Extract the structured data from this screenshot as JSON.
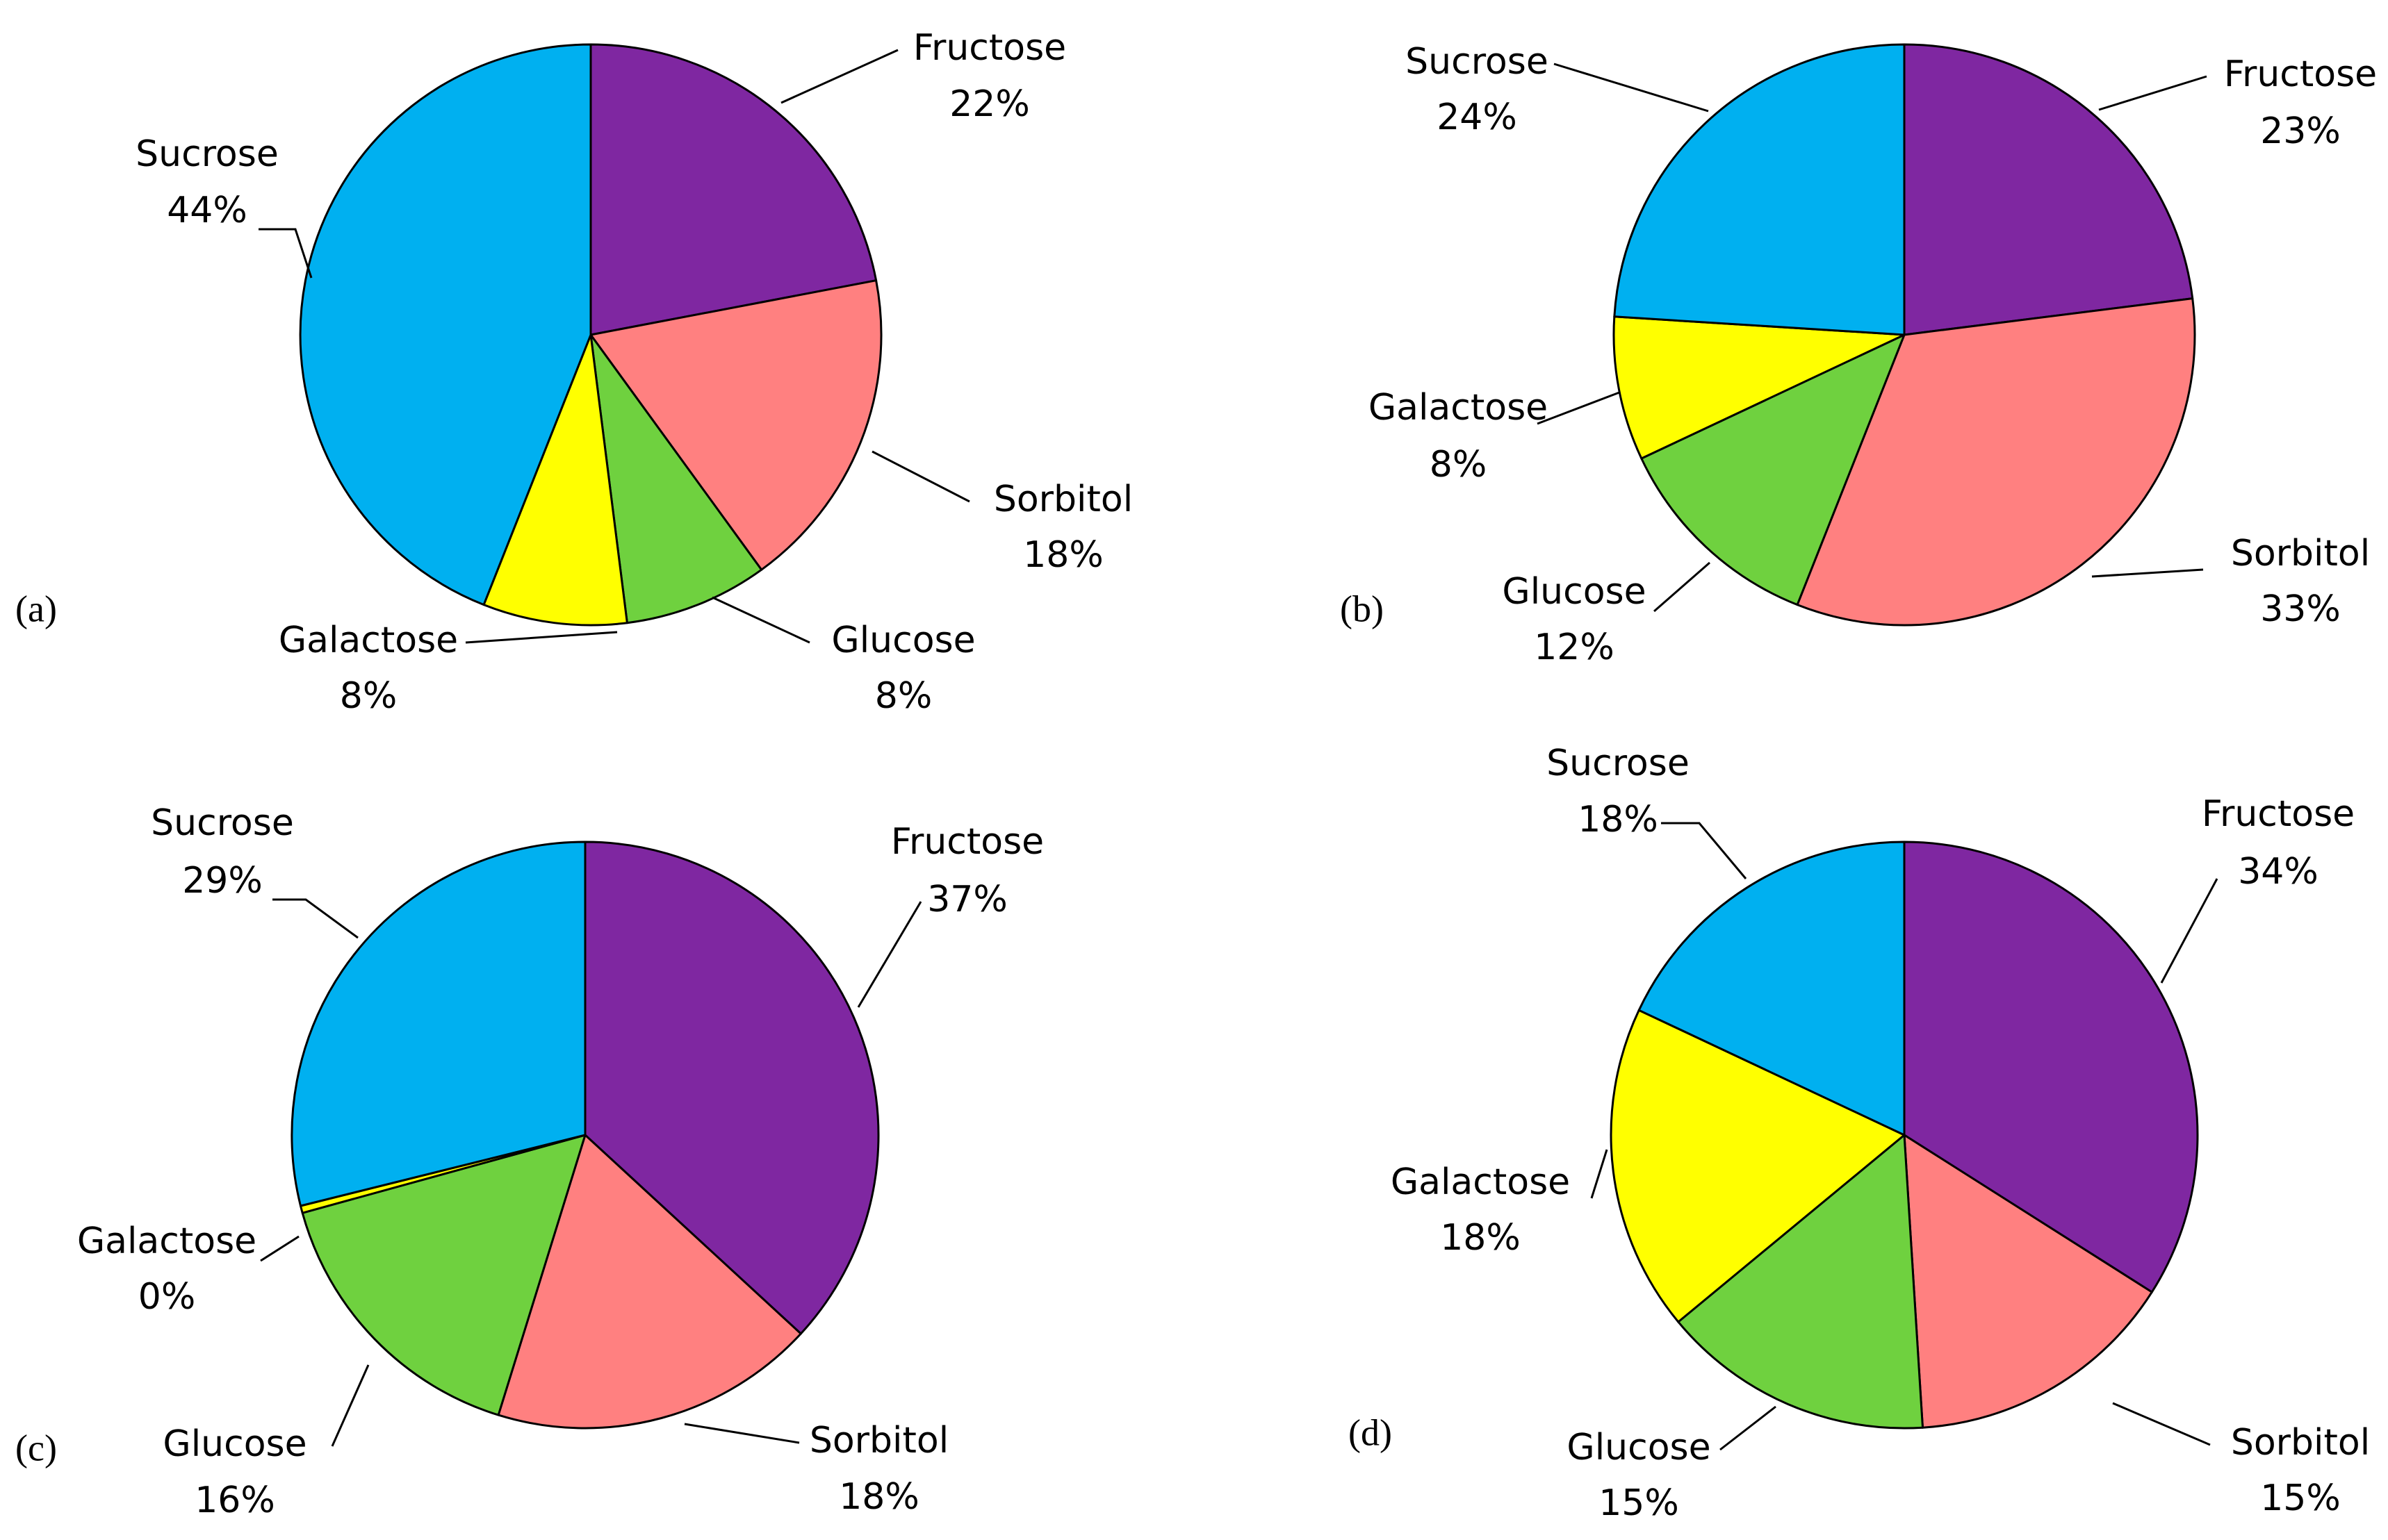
{
  "colors": {
    "Fructose": "#7F27A1",
    "Sorbitol": "#FF8080",
    "Glucose": "#6FD13F",
    "Galactose": "#FFFF00",
    "Sucrose": "#00B0F0"
  },
  "chart_data": [
    {
      "type": "pie",
      "panel_label": "(a)",
      "categories": [
        "Fructose",
        "Sorbitol",
        "Glucose",
        "Galactose",
        "Sucrose"
      ],
      "values": [
        22,
        18,
        8,
        8,
        44
      ],
      "labels": [
        "22%",
        "18%",
        "8%",
        "8%",
        "44%"
      ]
    },
    {
      "type": "pie",
      "panel_label": "(b)",
      "categories": [
        "Fructose",
        "Sorbitol",
        "Glucose",
        "Galactose",
        "Sucrose"
      ],
      "values": [
        23,
        33,
        12,
        8,
        24
      ],
      "labels": [
        "23%",
        "33%",
        "12%",
        "8%",
        "24%"
      ]
    },
    {
      "type": "pie",
      "panel_label": "(c)",
      "categories": [
        "Fructose",
        "Sorbitol",
        "Glucose",
        "Galactose",
        "Sucrose"
      ],
      "values": [
        37,
        18,
        16,
        0.4,
        29
      ],
      "labels": [
        "37%",
        "18%",
        "16%",
        "0%",
        "29%"
      ]
    },
    {
      "type": "pie",
      "panel_label": "(d)",
      "categories": [
        "Fructose",
        "Sorbitol",
        "Glucose",
        "Galactose",
        "Sucrose"
      ],
      "values": [
        34,
        15,
        15,
        18,
        18
      ],
      "labels": [
        "34%",
        "15%",
        "15%",
        "18%",
        "18%"
      ]
    }
  ]
}
